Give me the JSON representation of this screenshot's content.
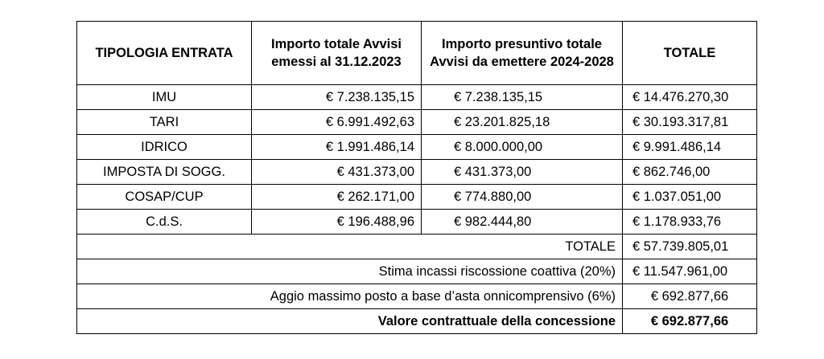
{
  "headers": {
    "col1": "TIPOLOGIA ENTRATA",
    "col2": "Importo totale Avvisi emessi al 31.12.2023",
    "col3": "Importo presuntivo totale Avvisi da emettere 2024-2028",
    "col4": "TOTALE"
  },
  "rows": [
    {
      "tipologia": "IMU",
      "emessi": "€ 7.238.135,15",
      "da_emettere": "€ 7.238.135,15",
      "totale": "€ 14.476.270,30"
    },
    {
      "tipologia": "TARI",
      "emessi": "€ 6.991.492,63",
      "da_emettere": "€ 23.201.825,18",
      "totale": "€ 30.193.317,81"
    },
    {
      "tipologia": "IDRICO",
      "emessi": "€ 1.991.486,14",
      "da_emettere": "€ 8.000.000,00",
      "totale": "€ 9.991.486,14"
    },
    {
      "tipologia": "IMPOSTA DI SOGG.",
      "emessi": "€ 431.373,00",
      "da_emettere": "€ 431.373,00",
      "totale": "€ 862.746,00"
    },
    {
      "tipologia": "COSAP/CUP",
      "emessi": "€ 262.171,00",
      "da_emettere": "€ 774.880,00",
      "totale": "€ 1.037.051,00"
    },
    {
      "tipologia": "C.d.S.",
      "emessi": "€ 196.488,96",
      "da_emettere": "€ 982.444,80",
      "totale": "€ 1.178.933,76"
    }
  ],
  "summary": {
    "totale_label": "TOTALE",
    "totale_value": "€ 57.739.805,01",
    "stima_label": "Stima incassi riscossione coattiva (20%)",
    "stima_value": "€ 11.547.961,00",
    "aggio_label": "Aggio massimo posto a base d’asta onnicomprensivo (6%)",
    "aggio_value": "€ 692.877,66",
    "valore_label": "Valore contrattuale della concessione",
    "valore_value": "€ 692.877,66"
  }
}
